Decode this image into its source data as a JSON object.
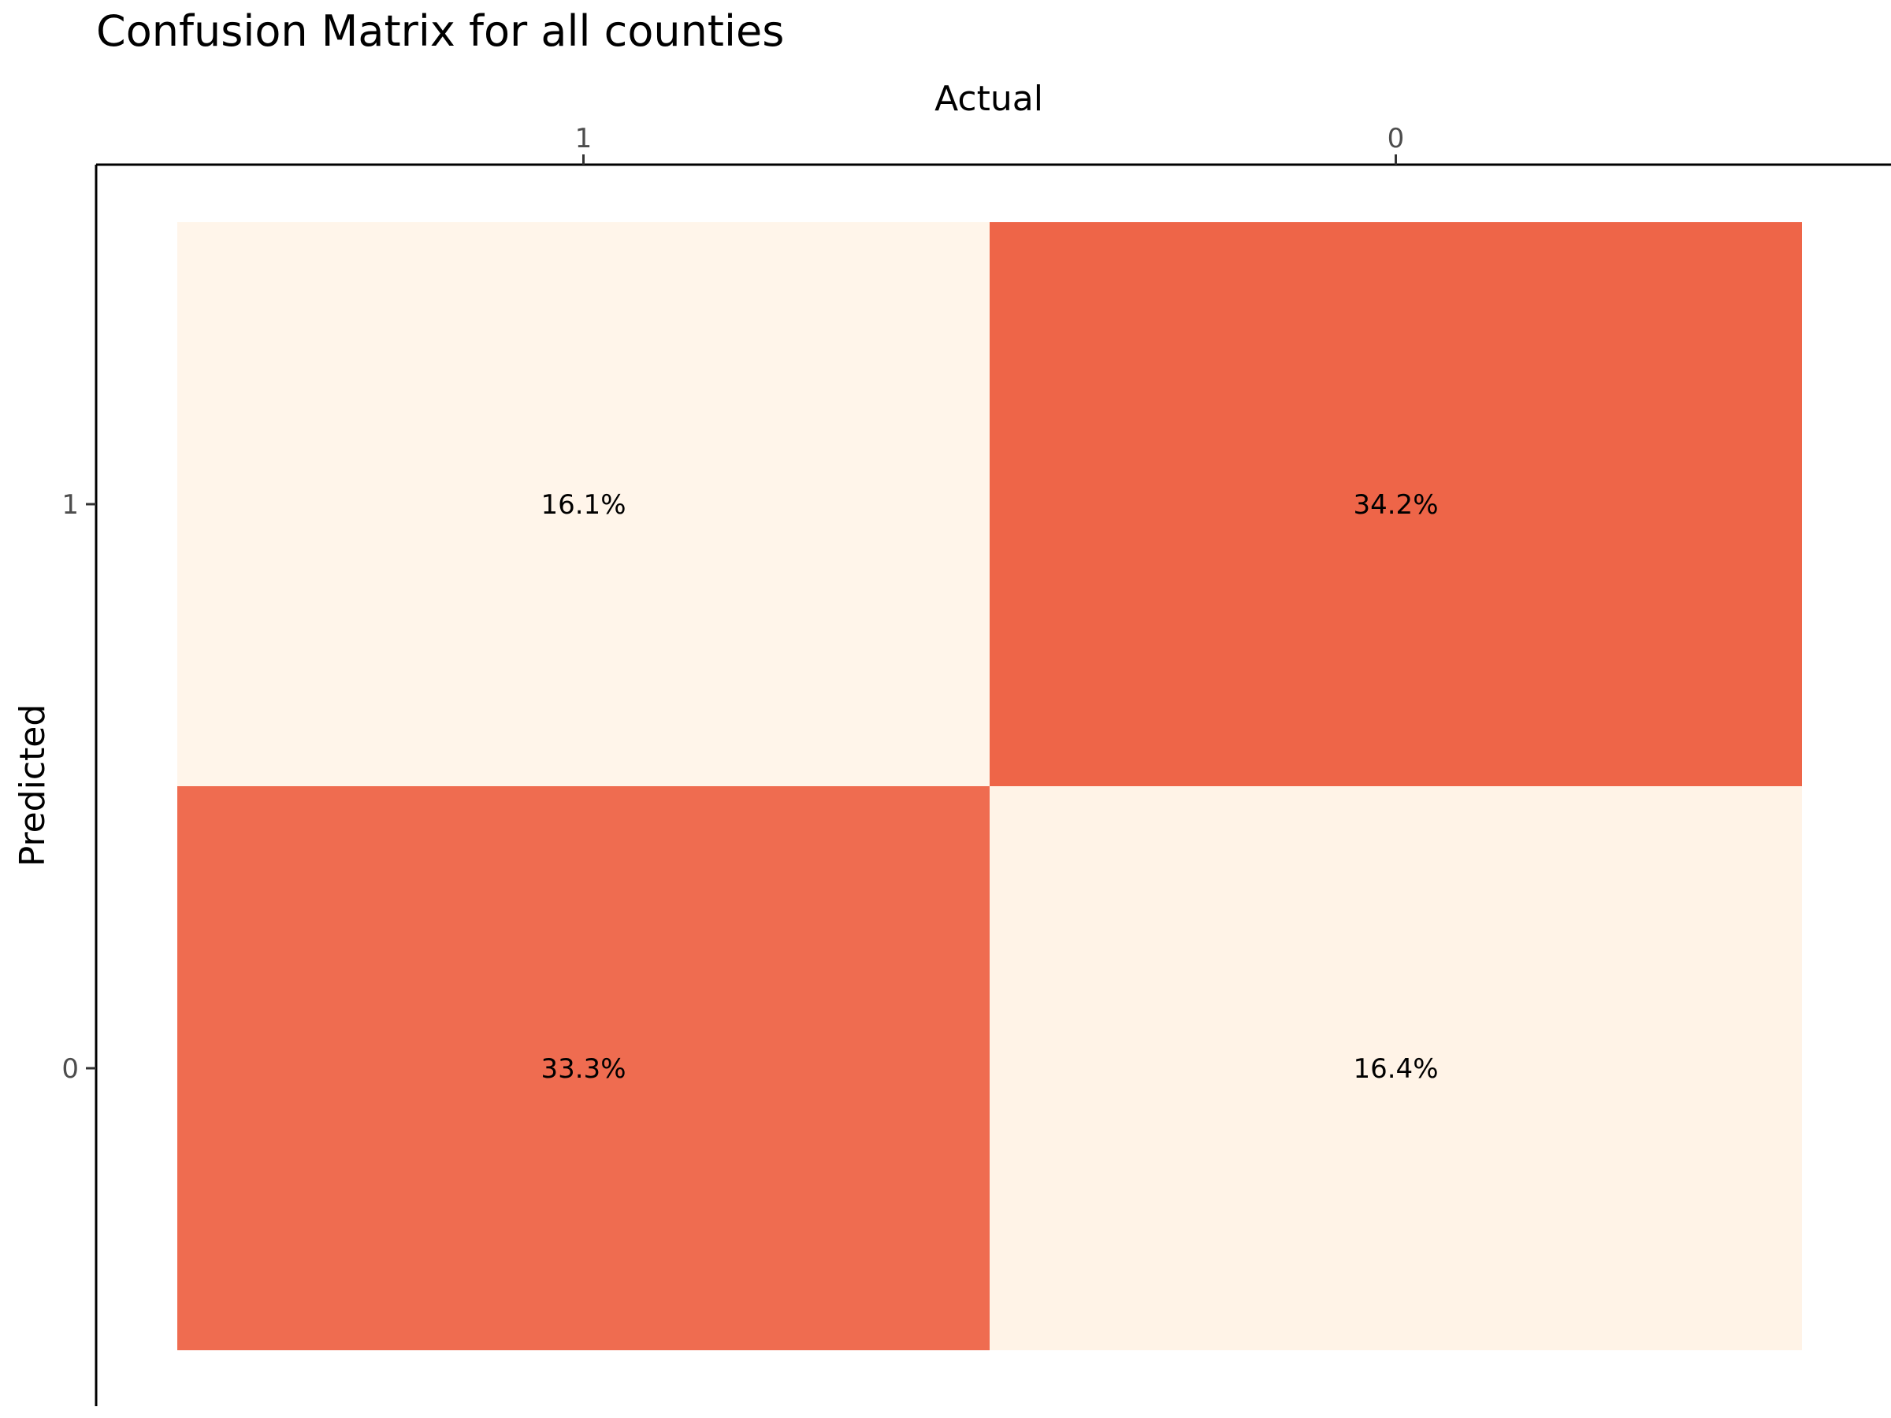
{
  "chart_data": {
    "type": "heatmap",
    "title": "Confusion Matrix for all counties",
    "xlabel": "Actual",
    "ylabel": "Predicted",
    "x_categories": [
      "1",
      "0"
    ],
    "y_categories": [
      "1",
      "0"
    ],
    "x_axis_position": "top",
    "grid": false,
    "legend": "none",
    "cells": [
      {
        "actual": "1",
        "predicted": "1",
        "value": 16.1,
        "label": "16.1%"
      },
      {
        "actual": "0",
        "predicted": "1",
        "value": 34.2,
        "label": "34.2%"
      },
      {
        "actual": "1",
        "predicted": "0",
        "value": 33.3,
        "label": "33.3%"
      },
      {
        "actual": "0",
        "predicted": "0",
        "value": 16.4,
        "label": "16.4%"
      }
    ],
    "color_low": "#fff5ea",
    "color_high": "#ee6548"
  }
}
